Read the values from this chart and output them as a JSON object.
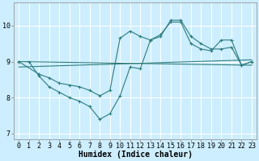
{
  "background_color": "#cceeff",
  "grid_color": "#ffffff",
  "line_color": "#2d7d7d",
  "xlabel": "Humidex (Indice chaleur)",
  "xlabel_fontsize": 7,
  "tick_fontsize": 6,
  "xlim": [
    -0.5,
    23.5
  ],
  "ylim": [
    6.85,
    10.65
  ],
  "yticks": [
    7,
    8,
    9,
    10
  ],
  "xticks": [
    0,
    1,
    2,
    3,
    4,
    5,
    6,
    7,
    8,
    9,
    10,
    11,
    12,
    13,
    14,
    15,
    16,
    17,
    18,
    19,
    20,
    21,
    22,
    23
  ],
  "series": [
    {
      "x": [
        0,
        1,
        2,
        3,
        4,
        5,
        6,
        7,
        8,
        9,
        10,
        11,
        12,
        13,
        14,
        15,
        16,
        17,
        18,
        19,
        20,
        21,
        22,
        23
      ],
      "y": [
        9.0,
        9.0,
        8.6,
        8.3,
        8.15,
        8.0,
        7.9,
        7.75,
        7.4,
        7.55,
        8.05,
        8.85,
        8.8,
        9.6,
        9.75,
        10.1,
        10.1,
        9.5,
        9.35,
        9.3,
        9.6,
        9.6,
        8.9,
        9.0
      ],
      "marker": true
    },
    {
      "x": [
        0,
        2,
        3,
        4,
        5,
        6,
        7,
        8,
        9,
        10,
        11,
        12,
        13,
        14,
        15,
        16,
        17,
        18,
        19,
        20,
        21,
        22,
        23
      ],
      "y": [
        9.0,
        8.65,
        8.55,
        8.4,
        8.35,
        8.3,
        8.2,
        8.05,
        8.2,
        9.65,
        9.85,
        9.7,
        9.6,
        9.7,
        10.15,
        10.15,
        9.7,
        9.5,
        9.35,
        9.35,
        9.4,
        8.9,
        9.0
      ],
      "marker": true
    },
    {
      "x": [
        0,
        23
      ],
      "y": [
        9.0,
        8.9
      ],
      "marker": false
    },
    {
      "x": [
        0,
        23
      ],
      "y": [
        8.85,
        9.05
      ],
      "marker": false
    }
  ]
}
